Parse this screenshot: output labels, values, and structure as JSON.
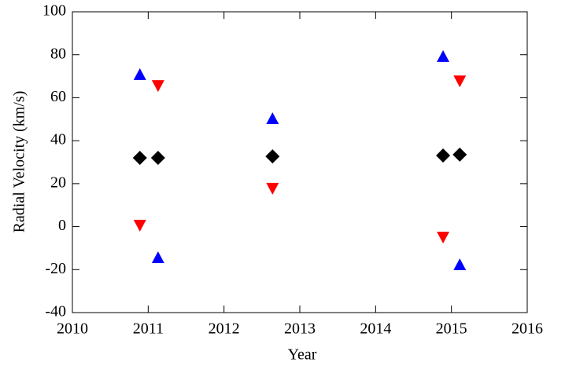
{
  "chart_data": {
    "type": "scatter",
    "xlabel": "Year",
    "ylabel": "Radial Velocity (km/s)",
    "xlim": [
      2010,
      2016
    ],
    "xticks": [
      2010,
      2011,
      2012,
      2013,
      2014,
      2015,
      2016
    ],
    "ylim": [
      -40,
      100
    ],
    "yticks": [
      -40,
      -20,
      0,
      20,
      40,
      60,
      80,
      100
    ],
    "grid": false,
    "series": [
      {
        "color": "#0000ff",
        "marker": "triangle-up",
        "x": [
          2010.89,
          2011.13,
          2012.64,
          2014.89,
          2015.11
        ],
        "values": [
          70.8,
          -14.4,
          50.3,
          79.2,
          -17.7
        ]
      },
      {
        "color": "#ff0000",
        "marker": "triangle-down",
        "x": [
          2010.89,
          2011.13,
          2012.64,
          2014.89,
          2015.11
        ],
        "values": [
          0.6,
          65.6,
          17.8,
          -4.9,
          67.8
        ]
      },
      {
        "color": "#000000",
        "marker": "diamond",
        "x": [
          2010.89,
          2011.13,
          2012.64,
          2014.89,
          2015.11
        ],
        "values": [
          32.0,
          32.0,
          32.7,
          33.1,
          33.5
        ]
      }
    ]
  }
}
